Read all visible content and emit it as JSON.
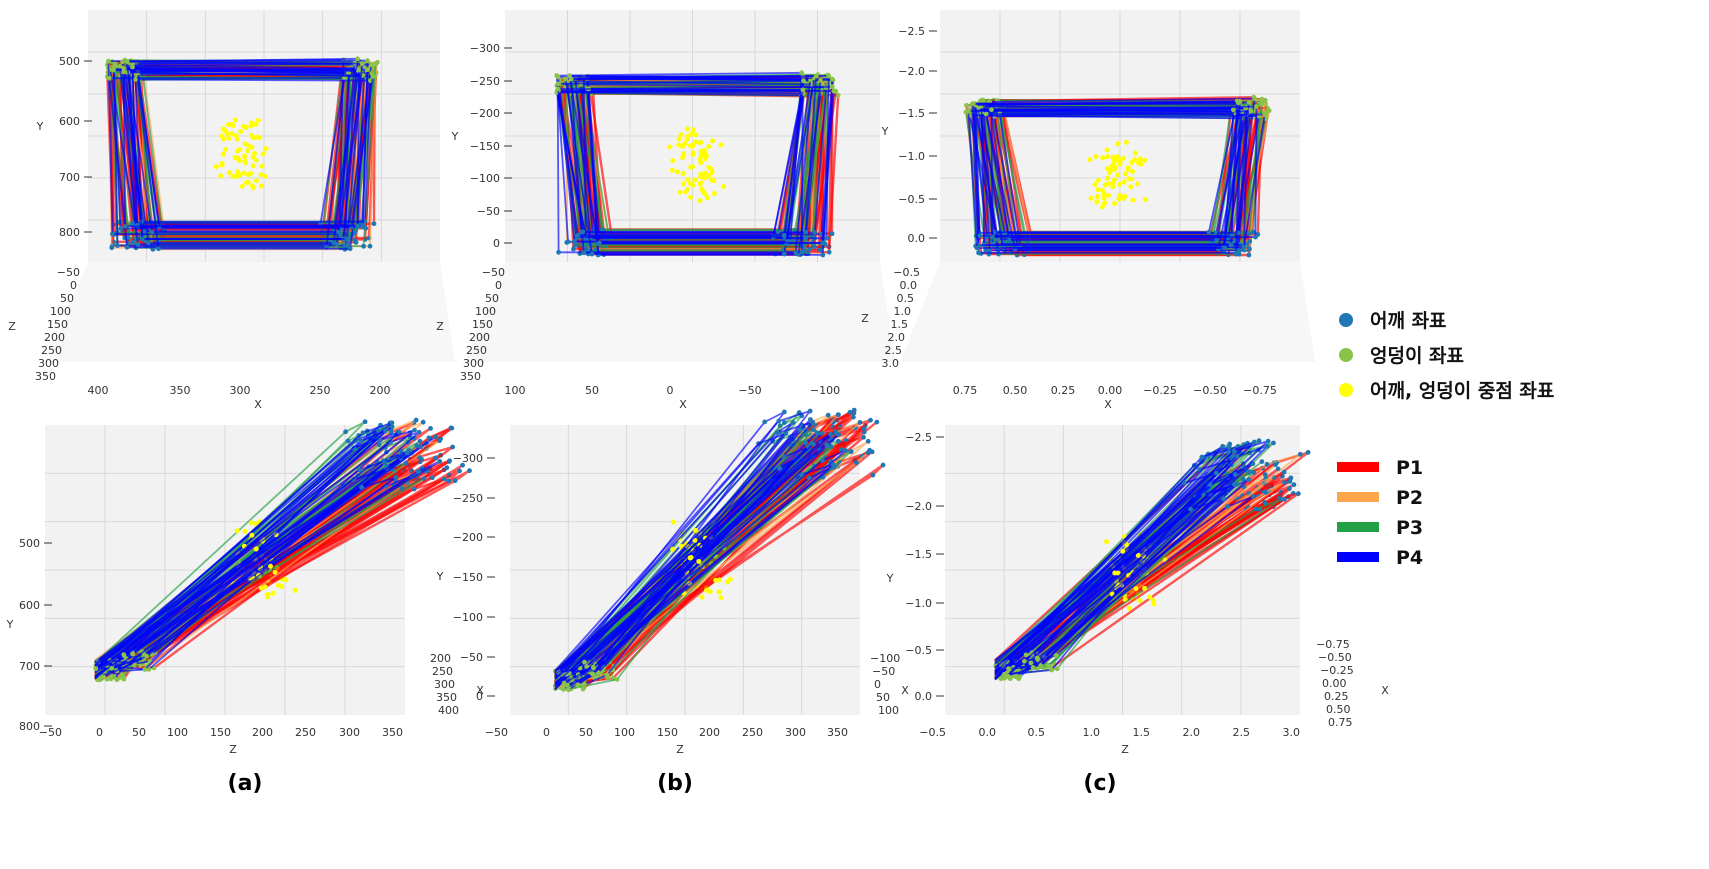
{
  "legend": {
    "markers": [
      {
        "label": "어깨 좌표",
        "color": "#1f77b4"
      },
      {
        "label": "엉덩이 좌표",
        "color": "#8bc34a"
      },
      {
        "label": "어깨, 엉덩이 중점 좌표",
        "color": "#ffff00"
      }
    ],
    "lines": [
      {
        "label": "P1",
        "color": "#ff0000"
      },
      {
        "label": "P2",
        "color": "#ffa64d"
      },
      {
        "label": "P3",
        "color": "#22a046"
      },
      {
        "label": "P4",
        "color": "#0000ff"
      }
    ]
  },
  "chart_data": [
    {
      "type": "line",
      "panel": "(a)",
      "view": "top",
      "yaxis": {
        "label": "Y",
        "ticks": [
          "500",
          "600",
          "700",
          "800"
        ]
      },
      "zaxis": {
        "label": "Z",
        "ticks": [
          "−50",
          "0",
          "50",
          "100",
          "150",
          "200",
          "250",
          "300",
          "350"
        ]
      },
      "xaxis": {
        "label": "X",
        "ticks": [
          "400",
          "350",
          "300",
          "250",
          "200"
        ]
      }
    },
    {
      "type": "line",
      "panel": "(b)",
      "view": "top",
      "yaxis": {
        "label": "Y",
        "ticks": [
          "−300",
          "−250",
          "−200",
          "−150",
          "−100",
          "−50",
          "0"
        ]
      },
      "zaxis": {
        "label": "Z",
        "ticks": [
          "−50",
          "0",
          "50",
          "100",
          "150",
          "200",
          "250",
          "300",
          "350"
        ]
      },
      "xaxis": {
        "label": "X",
        "ticks": [
          "100",
          "50",
          "0",
          "−50",
          "−100"
        ]
      }
    },
    {
      "type": "line",
      "panel": "(c)",
      "view": "top",
      "yaxis": {
        "label": "Y",
        "ticks": [
          "−2.5",
          "−2.0",
          "−1.5",
          "−1.0",
          "−0.5",
          "0.0"
        ]
      },
      "zaxis": {
        "label": "Z",
        "ticks": [
          "−0.5",
          "0.0",
          "0.5",
          "1.0",
          "1.5",
          "2.0",
          "2.5",
          "3.0"
        ]
      },
      "xaxis": {
        "label": "X",
        "ticks": [
          "0.75",
          "0.50",
          "0.25",
          "0.00",
          "−0.25",
          "−0.50",
          "−0.75"
        ]
      }
    },
    {
      "type": "line",
      "panel": "(a)",
      "view": "side",
      "yaxis": {
        "label": "Y",
        "ticks": [
          "500",
          "600",
          "700",
          "800"
        ]
      },
      "zaxis": {
        "label": "Z",
        "ticks": [
          "−50",
          "0",
          "50",
          "100",
          "150",
          "200",
          "250",
          "300",
          "350"
        ]
      },
      "xaxis": {
        "label": "X",
        "ticks": [
          "200",
          "250",
          "300",
          "350",
          "400"
        ]
      }
    },
    {
      "type": "line",
      "panel": "(b)",
      "view": "side",
      "yaxis": {
        "label": "Y",
        "ticks": [
          "−300",
          "−250",
          "−200",
          "−150",
          "−100",
          "−50",
          "0"
        ]
      },
      "zaxis": {
        "label": "Z",
        "ticks": [
          "−50",
          "0",
          "50",
          "100",
          "150",
          "200",
          "250",
          "300",
          "350"
        ]
      },
      "xaxis": {
        "label": "X",
        "ticks": [
          "−100",
          "−50",
          "0",
          "50",
          "100"
        ]
      }
    },
    {
      "type": "line",
      "panel": "(c)",
      "view": "side",
      "yaxis": {
        "label": "Y",
        "ticks": [
          "−2.5",
          "−2.0",
          "−1.5",
          "−1.0",
          "−0.5",
          "0.0"
        ]
      },
      "zaxis": {
        "label": "Z",
        "ticks": [
          "−0.5",
          "0.0",
          "0.5",
          "1.0",
          "1.5",
          "2.0",
          "2.5",
          "3.0"
        ]
      },
      "xaxis": {
        "label": "X",
        "ticks": [
          "−0.75",
          "−0.50",
          "−0.25",
          "0.00",
          "0.25",
          "0.50",
          "0.75"
        ]
      }
    }
  ],
  "captions": [
    "(a)",
    "(b)",
    "(c)"
  ]
}
